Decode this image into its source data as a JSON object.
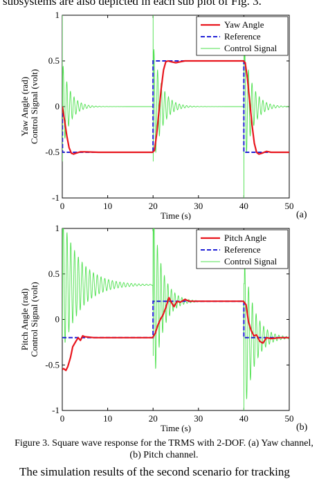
{
  "page": {
    "top_text": "subsystems are also depicted in each sub plot of Fig. 3.",
    "bottom_text": "The simulation results of the second scenario for tracking",
    "caption_line1": "Figure 3. Square wave response for the TRMS with 2-DOF. (a) Yaw channel,",
    "caption_line2": "(b) Pitch channel."
  },
  "chart_data": [
    {
      "type": "line",
      "panel_label": "(a)",
      "xlabel": "Time (s)",
      "ylabel_line1": "Yaw Angle (rad)",
      "ylabel_line2": "Control Signal (volt)",
      "xlim": [
        0,
        50
      ],
      "ylim": [
        -1,
        1
      ],
      "xticks": [
        "0",
        "10",
        "20",
        "30",
        "40",
        "50"
      ],
      "yticks": [
        "-1",
        "-0.5",
        "0",
        "0.5",
        "1"
      ],
      "legend_position": "top-right",
      "colors": {
        "angle": "#e8141c",
        "reference": "#1f1fd6",
        "control": "#4de04d"
      },
      "series": [
        {
          "name": "Yaw Angle",
          "style": "solid",
          "x": [
            0,
            0.5,
            1,
            1.5,
            2,
            2.5,
            3,
            4,
            5,
            8,
            10,
            15,
            19.9,
            20.3,
            20.8,
            21.3,
            21.8,
            22.3,
            22.8,
            23.3,
            24,
            25,
            26,
            27,
            30,
            35,
            39.9,
            40.3,
            40.8,
            41.3,
            41.8,
            42.3,
            42.8,
            43.3,
            44,
            45,
            46,
            47,
            50
          ],
          "y": [
            0,
            -0.15,
            -0.32,
            -0.45,
            -0.51,
            -0.52,
            -0.51,
            -0.495,
            -0.495,
            -0.5,
            -0.5,
            -0.5,
            -0.5,
            -0.48,
            -0.3,
            -0.05,
            0.2,
            0.4,
            0.49,
            0.5,
            0.49,
            0.48,
            0.49,
            0.5,
            0.5,
            0.5,
            0.5,
            0.48,
            0.3,
            0.05,
            -0.2,
            -0.4,
            -0.5,
            -0.52,
            -0.51,
            -0.49,
            -0.5,
            -0.5,
            -0.5
          ]
        },
        {
          "name": "Reference",
          "style": "dashed",
          "x": [
            0,
            0.05,
            20,
            20,
            40,
            40,
            50
          ],
          "y": [
            0,
            -0.5,
            -0.5,
            0.5,
            0.5,
            -0.5,
            -0.5
          ]
        },
        {
          "name": "Control Signal",
          "style": "solid",
          "type": "decaying_oscillation",
          "segments": [
            {
              "x_start": 0,
              "x_end": 20,
              "center": 0,
              "spike": 1.0,
              "amplitude": 0.5,
              "decay": 0.6,
              "frequency": 1.25
            },
            {
              "x_start": 20,
              "x_end": 40,
              "center": 0,
              "spike": 1.0,
              "amplitude": 0.7,
              "decay": 0.55,
              "frequency": 1.25
            },
            {
              "x_start": 40,
              "x_end": 50,
              "center": 0,
              "spike": -1.0,
              "amplitude": 0.7,
              "decay": 0.55,
              "frequency": 1.25
            }
          ]
        }
      ]
    },
    {
      "type": "line",
      "panel_label": "(b)",
      "xlabel": "Time (s)",
      "ylabel_line1": "Pitch Angle (rad)",
      "ylabel_line2": "Control Signal (volt)",
      "xlim": [
        0,
        50
      ],
      "ylim": [
        -1,
        1
      ],
      "xticks": [
        "0",
        "10",
        "20",
        "30",
        "40",
        "50"
      ],
      "yticks": [
        "-1",
        "-0.5",
        "0",
        "0.5",
        "1"
      ],
      "legend_position": "top-right",
      "colors": {
        "angle": "#e8141c",
        "reference": "#1f1fd6",
        "control": "#4de04d"
      },
      "series": [
        {
          "name": "Pitch Angle",
          "style": "solid",
          "x": [
            0,
            0.3,
            0.8,
            1.2,
            1.8,
            2.3,
            3,
            3.5,
            4,
            4.5,
            5,
            7,
            10,
            15,
            19.9,
            20.5,
            21,
            21.6,
            22.2,
            22.8,
            23.5,
            24,
            24.6,
            25.3,
            26,
            27,
            28,
            30,
            35,
            39.9,
            40.5,
            41,
            41.6,
            42.2,
            42.8,
            43.5,
            44.2,
            45,
            46,
            48,
            50
          ],
          "y": [
            -0.55,
            -0.54,
            -0.56,
            -0.52,
            -0.42,
            -0.3,
            -0.24,
            -0.2,
            -0.23,
            -0.18,
            -0.19,
            -0.2,
            -0.2,
            -0.2,
            -0.2,
            -0.15,
            -0.07,
            0.0,
            0.05,
            0.13,
            0.24,
            0.19,
            0.14,
            0.2,
            0.19,
            0.22,
            0.2,
            0.2,
            0.2,
            0.2,
            0.16,
            -0.02,
            -0.12,
            -0.18,
            -0.17,
            -0.24,
            -0.26,
            -0.2,
            -0.21,
            -0.2,
            -0.2
          ]
        },
        {
          "name": "Reference",
          "style": "dashed",
          "x": [
            0,
            20,
            20,
            40,
            40,
            50
          ],
          "y": [
            -0.2,
            -0.2,
            0.2,
            0.2,
            -0.2,
            -0.2
          ]
        },
        {
          "name": "Control Signal",
          "style": "solid",
          "type": "decaying_oscillation",
          "segments": [
            {
              "x_start": 0,
              "x_end": 20,
              "center": 0.38,
              "spike": 1.0,
              "amplitude": 0.75,
              "decay": 0.25,
              "frequency": 1.2
            },
            {
              "x_start": 20,
              "x_end": 40,
              "center": 0.2,
              "spike": 1.0,
              "amplitude": 1.0,
              "decay": 0.5,
              "frequency": 1.3
            },
            {
              "x_start": 40,
              "x_end": 50,
              "center": -0.2,
              "spike": -1.0,
              "amplitude": 0.9,
              "decay": 0.45,
              "frequency": 1.2
            }
          ]
        }
      ]
    }
  ]
}
